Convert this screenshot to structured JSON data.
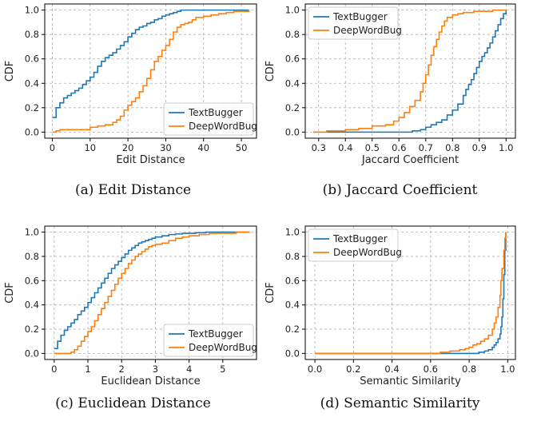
{
  "colors": {
    "textbugger": "#1f77b4",
    "deepwordbug": "#ff7f0e",
    "grid": "#b0b0b0"
  },
  "chart_data": [
    {
      "type": "line",
      "panel": "a",
      "caption": "(a) Edit Distance",
      "xlabel": "Edit Distance",
      "ylabel": "CDF",
      "xlim": [
        -2,
        54
      ],
      "ylim": [
        -0.05,
        1.05
      ],
      "xticks": [
        0,
        10,
        20,
        30,
        40,
        50
      ],
      "yticks": [
        0.0,
        0.2,
        0.4,
        0.6,
        0.8,
        1.0
      ],
      "grid": true,
      "legend_position": "lower-right",
      "series": [
        {
          "name": "TextBugger",
          "color_key": "textbugger",
          "x": [
            0,
            1,
            2,
            3,
            4,
            5,
            6,
            7,
            8,
            9,
            10,
            11,
            12,
            13,
            14,
            15,
            16,
            17,
            18,
            19,
            20,
            21,
            22,
            23,
            24,
            25,
            26,
            27,
            28,
            29,
            30,
            31,
            32,
            33,
            34,
            35,
            36,
            37,
            38,
            40,
            42,
            44,
            46,
            48,
            50,
            52
          ],
          "y": [
            0.12,
            0.2,
            0.24,
            0.28,
            0.3,
            0.32,
            0.34,
            0.36,
            0.39,
            0.42,
            0.45,
            0.49,
            0.54,
            0.58,
            0.61,
            0.63,
            0.65,
            0.68,
            0.71,
            0.74,
            0.78,
            0.81,
            0.84,
            0.86,
            0.87,
            0.89,
            0.9,
            0.92,
            0.93,
            0.95,
            0.96,
            0.97,
            0.98,
            0.99,
            1.0,
            1.0,
            1.0,
            1.0,
            1.0,
            1.0,
            1.0,
            1.0,
            1.0,
            1.0,
            1.0,
            1.0
          ]
        },
        {
          "name": "DeepWordBug",
          "color_key": "deepwordbug",
          "x": [
            0,
            1,
            2,
            4,
            8,
            10,
            12,
            14,
            16,
            17,
            18,
            19,
            20,
            21,
            22,
            23,
            24,
            25,
            26,
            27,
            28,
            29,
            30,
            31,
            32,
            33,
            34,
            35,
            36,
            37,
            38,
            40,
            42,
            44,
            46,
            48,
            50,
            52
          ],
          "y": [
            0.0,
            0.01,
            0.02,
            0.02,
            0.02,
            0.04,
            0.05,
            0.06,
            0.08,
            0.1,
            0.13,
            0.18,
            0.22,
            0.25,
            0.28,
            0.33,
            0.38,
            0.44,
            0.51,
            0.58,
            0.62,
            0.67,
            0.71,
            0.76,
            0.82,
            0.86,
            0.88,
            0.89,
            0.9,
            0.92,
            0.94,
            0.95,
            0.96,
            0.97,
            0.98,
            0.99,
            0.99,
            1.0
          ]
        }
      ]
    },
    {
      "type": "line",
      "panel": "b",
      "caption": "(b) Jaccard Coefficient",
      "xlabel": "Jaccard Coefficient",
      "ylabel": "CDF",
      "xlim": [
        0.25,
        1.035
      ],
      "ylim": [
        -0.05,
        1.05
      ],
      "xticks": [
        0.3,
        0.4,
        0.5,
        0.6,
        0.7,
        0.8,
        0.9,
        1.0
      ],
      "yticks": [
        0.0,
        0.2,
        0.4,
        0.6,
        0.8,
        1.0
      ],
      "grid": true,
      "legend_position": "upper-left",
      "series": [
        {
          "name": "TextBugger",
          "color_key": "textbugger",
          "x": [
            0.28,
            0.6,
            0.65,
            0.68,
            0.7,
            0.72,
            0.74,
            0.76,
            0.78,
            0.8,
            0.82,
            0.84,
            0.85,
            0.86,
            0.87,
            0.88,
            0.89,
            0.9,
            0.91,
            0.92,
            0.93,
            0.94,
            0.95,
            0.96,
            0.97,
            0.98,
            0.99,
            1.0
          ],
          "y": [
            0.0,
            0.0,
            0.01,
            0.02,
            0.04,
            0.06,
            0.08,
            0.1,
            0.14,
            0.18,
            0.23,
            0.3,
            0.35,
            0.39,
            0.43,
            0.48,
            0.53,
            0.58,
            0.62,
            0.65,
            0.69,
            0.73,
            0.78,
            0.83,
            0.88,
            0.93,
            0.97,
            1.0
          ]
        },
        {
          "name": "DeepWordBug",
          "color_key": "deepwordbug",
          "x": [
            0.28,
            0.33,
            0.4,
            0.45,
            0.5,
            0.55,
            0.58,
            0.6,
            0.62,
            0.64,
            0.66,
            0.68,
            0.69,
            0.7,
            0.71,
            0.72,
            0.73,
            0.74,
            0.75,
            0.76,
            0.77,
            0.78,
            0.8,
            0.82,
            0.84,
            0.86,
            0.88,
            0.9,
            0.95,
            1.0
          ],
          "y": [
            0.0,
            0.01,
            0.02,
            0.03,
            0.05,
            0.06,
            0.09,
            0.12,
            0.16,
            0.21,
            0.26,
            0.33,
            0.4,
            0.47,
            0.55,
            0.63,
            0.7,
            0.76,
            0.82,
            0.87,
            0.91,
            0.94,
            0.96,
            0.97,
            0.98,
            0.98,
            0.99,
            0.99,
            1.0,
            1.0
          ]
        }
      ]
    },
    {
      "type": "line",
      "panel": "c",
      "caption": "(c) Euclidean Distance",
      "xlabel": "Euclidean Distance",
      "ylabel": "CDF",
      "xlim": [
        -0.28,
        6.0
      ],
      "ylim": [
        -0.05,
        1.05
      ],
      "xticks": [
        0,
        1,
        2,
        3,
        4,
        5
      ],
      "yticks": [
        0.0,
        0.2,
        0.4,
        0.6,
        0.8,
        1.0
      ],
      "grid": true,
      "legend_position": "lower-right",
      "series": [
        {
          "name": "TextBugger",
          "color_key": "textbugger",
          "x": [
            0,
            0.1,
            0.2,
            0.3,
            0.4,
            0.5,
            0.6,
            0.7,
            0.8,
            0.9,
            1.0,
            1.1,
            1.2,
            1.3,
            1.4,
            1.5,
            1.6,
            1.7,
            1.8,
            1.9,
            2.0,
            2.1,
            2.2,
            2.3,
            2.4,
            2.5,
            2.6,
            2.7,
            2.8,
            2.9,
            3.0,
            3.2,
            3.4,
            3.6,
            3.8,
            4.0,
            4.2,
            4.5,
            5.0,
            5.5,
            5.8
          ],
          "y": [
            0.04,
            0.1,
            0.15,
            0.19,
            0.22,
            0.25,
            0.28,
            0.32,
            0.35,
            0.38,
            0.42,
            0.46,
            0.5,
            0.54,
            0.58,
            0.62,
            0.66,
            0.7,
            0.73,
            0.76,
            0.79,
            0.82,
            0.85,
            0.87,
            0.89,
            0.91,
            0.92,
            0.93,
            0.94,
            0.95,
            0.96,
            0.97,
            0.98,
            0.985,
            0.99,
            0.99,
            0.995,
            1.0,
            1.0,
            1.0,
            1.0
          ]
        },
        {
          "name": "DeepWordBug",
          "color_key": "deepwordbug",
          "x": [
            0,
            0.5,
            0.6,
            0.7,
            0.8,
            0.9,
            1.0,
            1.1,
            1.2,
            1.3,
            1.4,
            1.5,
            1.6,
            1.7,
            1.8,
            1.9,
            2.0,
            2.1,
            2.2,
            2.3,
            2.4,
            2.5,
            2.6,
            2.7,
            2.8,
            2.9,
            3.0,
            3.2,
            3.4,
            3.6,
            3.8,
            4.0,
            4.3,
            4.6,
            5.0,
            5.4,
            5.8
          ],
          "y": [
            0.0,
            0.01,
            0.03,
            0.06,
            0.1,
            0.14,
            0.18,
            0.22,
            0.27,
            0.32,
            0.37,
            0.42,
            0.47,
            0.52,
            0.57,
            0.62,
            0.66,
            0.7,
            0.74,
            0.77,
            0.8,
            0.82,
            0.84,
            0.86,
            0.88,
            0.89,
            0.9,
            0.91,
            0.93,
            0.95,
            0.96,
            0.97,
            0.98,
            0.99,
            0.99,
            1.0,
            1.0
          ]
        }
      ]
    },
    {
      "type": "line",
      "panel": "d",
      "caption": "(d) Semantic Similarity",
      "xlabel": "Semantic Similarity",
      "ylabel": "CDF",
      "xlim": [
        -0.05,
        1.04
      ],
      "ylim": [
        -0.05,
        1.05
      ],
      "xticks": [
        0.0,
        0.2,
        0.4,
        0.6,
        0.8,
        1.0
      ],
      "yticks": [
        0.0,
        0.2,
        0.4,
        0.6,
        0.8,
        1.0
      ],
      "grid": true,
      "legend_position": "upper-left",
      "series": [
        {
          "name": "TextBugger",
          "color_key": "textbugger",
          "x": [
            0.0,
            0.8,
            0.85,
            0.88,
            0.9,
            0.92,
            0.93,
            0.94,
            0.95,
            0.96,
            0.965,
            0.97,
            0.975,
            0.98,
            0.985,
            0.99
          ],
          "y": [
            0.0,
            0.0,
            0.01,
            0.02,
            0.03,
            0.05,
            0.07,
            0.09,
            0.12,
            0.16,
            0.22,
            0.3,
            0.45,
            0.65,
            0.85,
            1.0
          ]
        },
        {
          "name": "DeepWordBug",
          "color_key": "deepwordbug",
          "x": [
            0.0,
            0.6,
            0.65,
            0.7,
            0.75,
            0.78,
            0.8,
            0.82,
            0.84,
            0.86,
            0.88,
            0.9,
            0.92,
            0.93,
            0.94,
            0.95,
            0.96,
            0.965,
            0.97,
            0.98,
            0.985,
            0.99
          ],
          "y": [
            0.0,
            0.0,
            0.01,
            0.02,
            0.03,
            0.04,
            0.05,
            0.07,
            0.08,
            0.1,
            0.12,
            0.15,
            0.2,
            0.25,
            0.3,
            0.38,
            0.48,
            0.6,
            0.7,
            0.85,
            0.95,
            1.0
          ]
        }
      ]
    }
  ]
}
